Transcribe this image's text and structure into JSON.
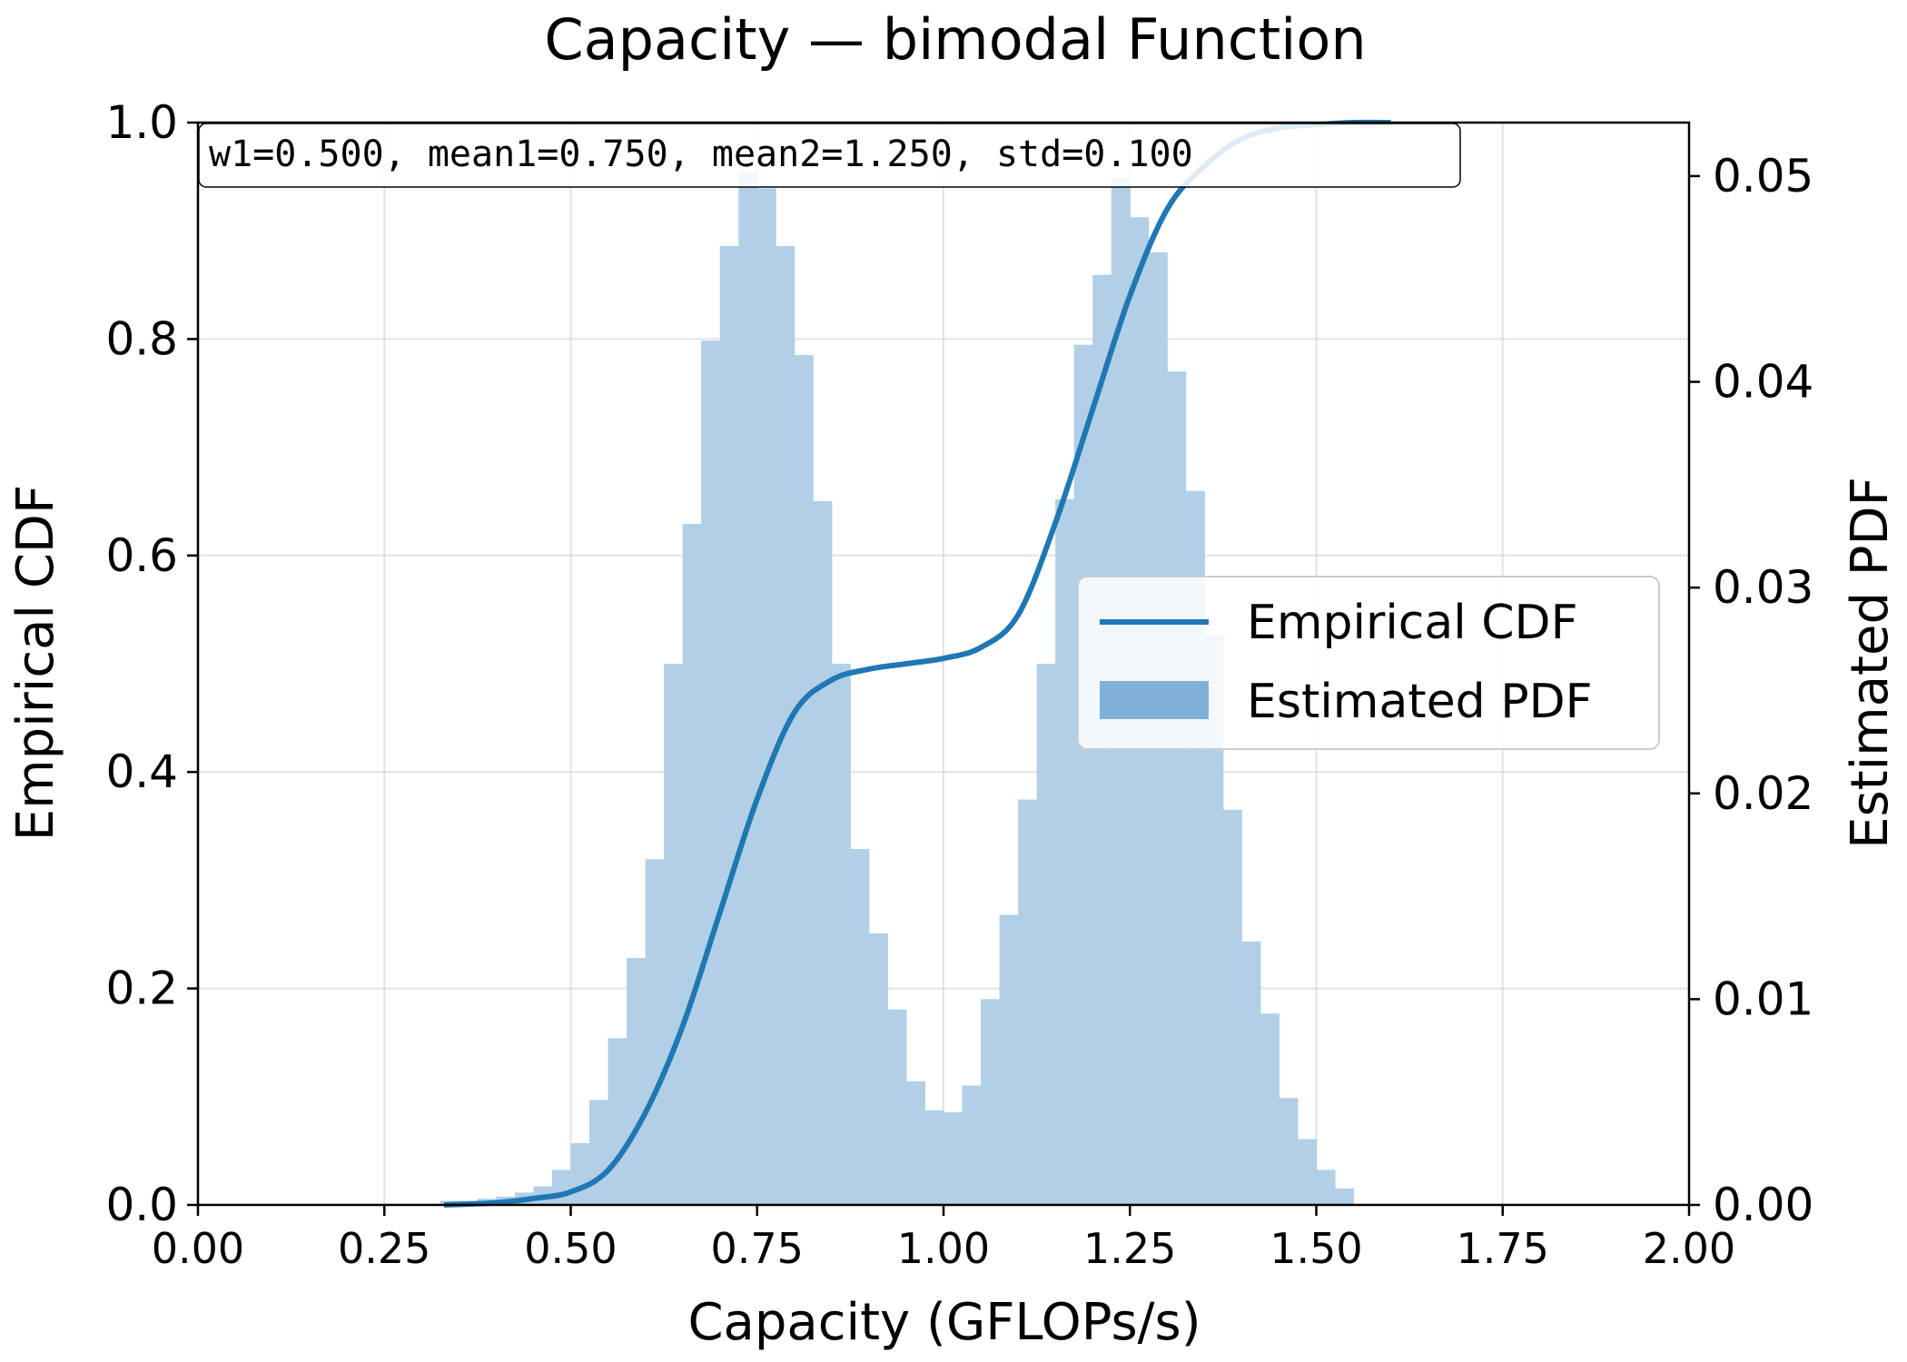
{
  "chart_data": {
    "type": "bar",
    "title": "Capacity — bimodal Function",
    "xlabel": "Capacity (GFLOPs/s)",
    "ylabel": "Empirical CDF",
    "y2label": "Estimated PDF",
    "xlim": [
      0.0,
      2.0
    ],
    "ylim": [
      0.0,
      1.0
    ],
    "y2lim": [
      0.0,
      0.0526
    ],
    "xticks": [
      "0.00",
      "0.25",
      "0.50",
      "0.75",
      "1.00",
      "1.25",
      "1.50",
      "1.75",
      "2.00"
    ],
    "yticks": [
      "0.0",
      "0.2",
      "0.4",
      "0.6",
      "0.8",
      "1.0"
    ],
    "y2ticks": [
      "0.00",
      "0.01",
      "0.02",
      "0.03",
      "0.04",
      "0.05"
    ],
    "grid": true,
    "legend_position": "center-right",
    "annotation": "w1=0.500, mean1=0.750, mean2=1.250, std=0.100",
    "colors": {
      "cdf_line": "#1f77b4",
      "pdf_bars": "#b1cfe6",
      "pdf_legend": "#7fb0d8"
    },
    "series": [
      {
        "name": "Empirical CDF",
        "kind": "line",
        "x": [
          0.33,
          0.4,
          0.45,
          0.5,
          0.55,
          0.6,
          0.65,
          0.7,
          0.75,
          0.8,
          0.85,
          0.9,
          0.95,
          1.0,
          1.05,
          1.1,
          1.15,
          1.2,
          1.25,
          1.3,
          1.35,
          1.4,
          1.45,
          1.5,
          1.55,
          1.6
        ],
        "y": [
          0.0,
          0.002,
          0.006,
          0.012,
          0.032,
          0.085,
          0.165,
          0.27,
          0.375,
          0.455,
          0.485,
          0.495,
          0.5,
          0.505,
          0.515,
          0.545,
          0.63,
          0.735,
          0.84,
          0.92,
          0.96,
          0.985,
          0.995,
          0.998,
          1.0,
          1.0
        ]
      },
      {
        "name": "Estimated PDF",
        "kind": "histogram",
        "bin_width": 0.025,
        "bin_start": [
          0.325,
          0.35,
          0.375,
          0.4,
          0.425,
          0.45,
          0.475,
          0.5,
          0.525,
          0.55,
          0.575,
          0.6,
          0.625,
          0.65,
          0.675,
          0.7,
          0.725,
          0.75,
          0.775,
          0.8,
          0.825,
          0.85,
          0.875,
          0.9,
          0.925,
          0.95,
          0.975,
          1.0,
          1.025,
          1.05,
          1.075,
          1.1,
          1.125,
          1.15,
          1.175,
          1.2,
          1.225,
          1.25,
          1.275,
          1.3,
          1.325,
          1.35,
          1.375,
          1.4,
          1.425,
          1.45,
          1.475,
          1.5,
          1.525
        ],
        "values": [
          0.0002,
          0.0002,
          0.0003,
          0.0004,
          0.0006,
          0.0009,
          0.0017,
          0.003,
          0.0051,
          0.0081,
          0.012,
          0.0168,
          0.0263,
          0.0331,
          0.042,
          0.0466,
          0.0502,
          0.0494,
          0.0466,
          0.0413,
          0.0342,
          0.0263,
          0.0173,
          0.0132,
          0.0095,
          0.006,
          0.0046,
          0.0045,
          0.0058,
          0.01,
          0.0141,
          0.0197,
          0.0263,
          0.0343,
          0.0418,
          0.0452,
          0.0499,
          0.048,
          0.0463,
          0.0405,
          0.0347,
          0.0277,
          0.0192,
          0.0128,
          0.0093,
          0.0052,
          0.0032,
          0.0017,
          0.0008
        ]
      }
    ]
  }
}
